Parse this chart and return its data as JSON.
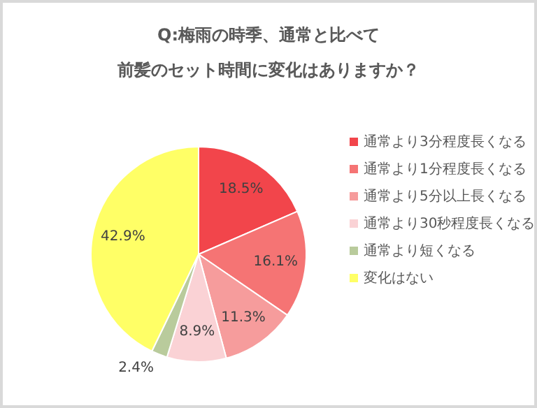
{
  "chart_data": {
    "type": "pie",
    "title": "Q:梅雨の時季、通常と比べて",
    "subtitle": "前髪のセット時間に変化はありますか？",
    "categories": [
      "通常より3分程度長くなる",
      "通常より1分程度長くなる",
      "通常より5分以上長くなる",
      "通常より30秒程度長くなる",
      "通常より短くなる",
      "変化はない"
    ],
    "values": [
      18.5,
      16.1,
      11.3,
      8.9,
      2.4,
      42.9
    ],
    "value_labels": [
      "18.5%",
      "16.1%",
      "11.3%",
      "8.9%",
      "2.4%",
      "42.9%"
    ],
    "colors": [
      "#f2454b",
      "#f57474",
      "#f69c9c",
      "#fad2d5",
      "#b9cb9c",
      "#ffff66"
    ],
    "legend": "right"
  }
}
